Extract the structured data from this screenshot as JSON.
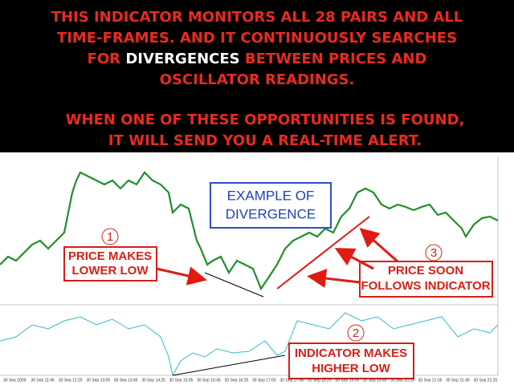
{
  "banner": {
    "line1": "THIS INDICATOR MONITORS ALL 28 PAIRS AND ALL",
    "line2": "TIME-FRAMES. AND IT CONTINUOUSLY SEARCHES",
    "line3": {
      "before": "FOR ",
      "highlight": "DIVERGENCES",
      "after": " BETWEEN PRICES AND"
    },
    "line4": "OSCILLATOR READINGS.",
    "line5": "WHEN ONE OF THESE OPPORTUNITIES IS FOUND,",
    "line6": "IT WILL SEND YOU A REAL-TIME ALERT."
  },
  "callouts": [
    {
      "lines": [
        "EXAMPLE OF",
        "DIVERGENCE"
      ]
    },
    {
      "number": "1",
      "lines": [
        "PRICE MAKES",
        "LOWER LOW"
      ]
    },
    {
      "number": "3",
      "lines": [
        "PRICE SOON",
        "FOLLOWS INDICATOR"
      ]
    },
    {
      "number": "2",
      "lines": [
        "INDICATOR MAKES",
        "HIGHER LOW"
      ]
    }
  ],
  "x_labels": [
    "30 Sep 2009",
    "30 Sep 11:45",
    "30 Sep 12:25",
    "30 Sep 13:05",
    "30 Sep 13:45",
    "30 Sep 14:25",
    "30 Sep 15:05",
    "30 Sep 15:45",
    "30 Sep 16:25",
    "30 Sep 17:05",
    "30 Sep 17:45",
    "30 Sep 18:25",
    "30 Sep 19:05",
    "30 Sep 19:45",
    "30 Sep 20:25",
    "30 Sep 21:05",
    "30 Sep 21:45",
    "30 Sep 22:25"
  ]
}
